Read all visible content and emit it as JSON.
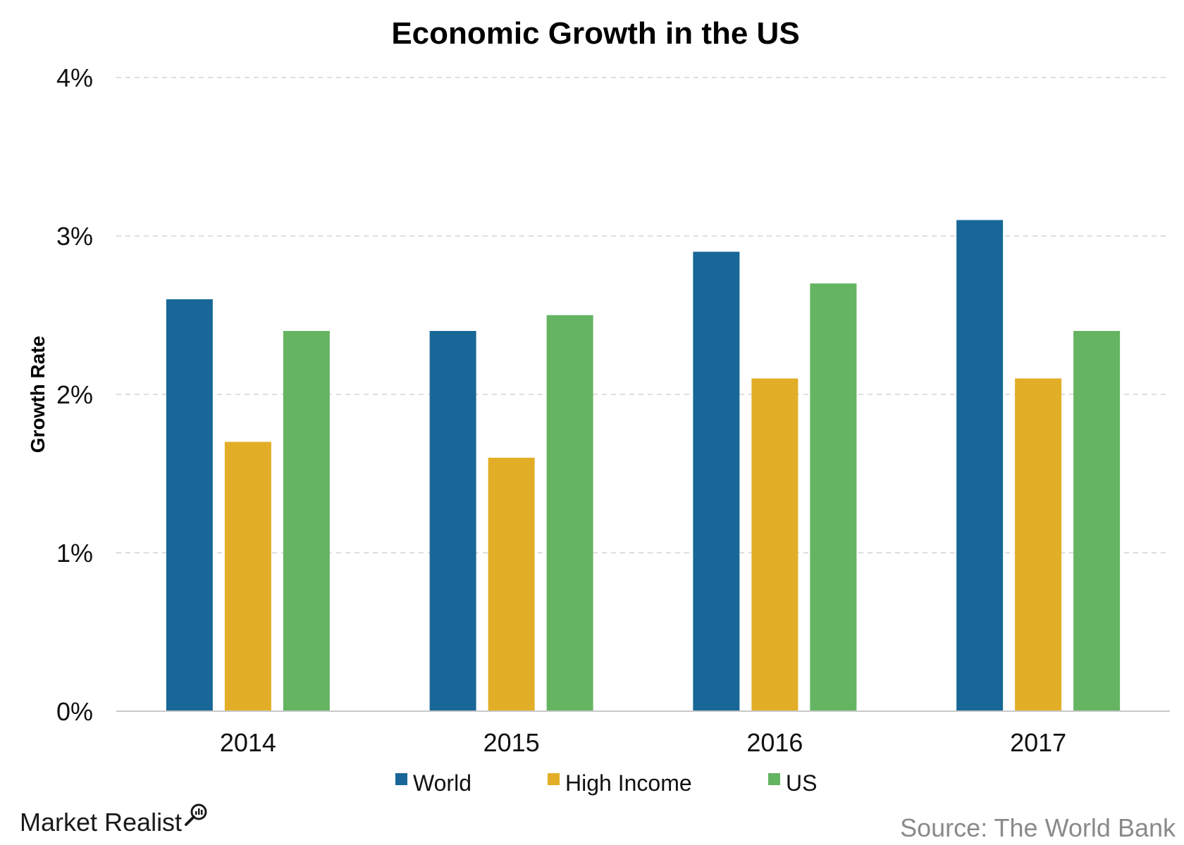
{
  "chart_data": {
    "type": "bar",
    "title": "Economic Growth in the US",
    "xlabel": "",
    "ylabel": "Growth Rate",
    "categories": [
      "2014",
      "2015",
      "2016",
      "2017"
    ],
    "series": [
      {
        "name": "World",
        "color": "#186798",
        "values": [
          2.6,
          2.4,
          2.9,
          3.1
        ]
      },
      {
        "name": "High Income",
        "color": "#e2ae27",
        "values": [
          1.7,
          1.6,
          2.1,
          2.1
        ]
      },
      {
        "name": "US",
        "color": "#65b462",
        "values": [
          2.4,
          2.5,
          2.7,
          2.4
        ]
      }
    ],
    "ylim": [
      0,
      4
    ],
    "yticks": [
      0,
      1,
      2,
      3,
      4
    ],
    "ytick_labels": [
      "0%",
      "1%",
      "2%",
      "3%",
      "4%"
    ],
    "grid": true,
    "legend_position": "bottom-center"
  },
  "branding": {
    "logo_text": "Market Realist",
    "source": "Source: The World Bank"
  }
}
